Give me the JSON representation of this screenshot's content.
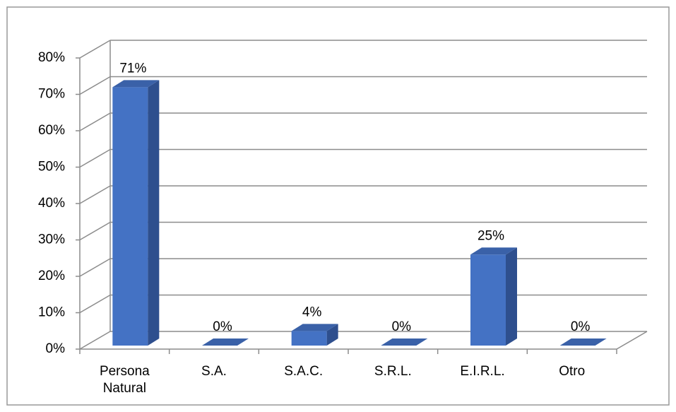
{
  "chart_data": {
    "type": "bar3d",
    "categories": [
      "Persona Natural",
      "S.A.",
      "S.A.C.",
      "S.R.L.",
      "E.I.R.L.",
      "Otro"
    ],
    "values": [
      71,
      0,
      4,
      0,
      25,
      0
    ],
    "value_labels": [
      "71%",
      "0%",
      "4%",
      "0%",
      "25%",
      "0%"
    ],
    "color": "#4472c4",
    "ylim": [
      0,
      80
    ],
    "yticks": [
      {
        "value": 0,
        "label": "0%"
      },
      {
        "value": 10,
        "label": "10%"
      },
      {
        "value": 20,
        "label": "20%"
      },
      {
        "value": 30,
        "label": "30%"
      },
      {
        "value": 40,
        "label": "40%"
      },
      {
        "value": 50,
        "label": "50%"
      },
      {
        "value": 60,
        "label": "60%"
      },
      {
        "value": 70,
        "label": "70%"
      },
      {
        "value": 80,
        "label": "80%"
      }
    ],
    "grid": true
  }
}
